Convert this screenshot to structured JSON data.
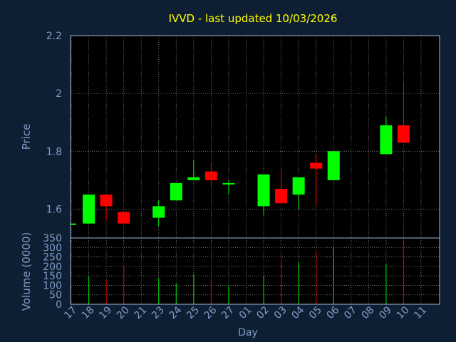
{
  "colors": {
    "background": "#0f1f33",
    "plot_background": "#000000",
    "frame": "#9fb3d4",
    "grid": "#8a8a8a",
    "title": "#ffff00",
    "axis_text": "#7f9cc7",
    "up": "#00ff00",
    "down": "#ff0000",
    "volume_up": "#00cc00",
    "volume_down": "#cc0000"
  },
  "chart_data": [
    {
      "type": "candlestick",
      "title": "IVVD - last updated 10/03/2026",
      "ylabel": "Price",
      "ylim": [
        1.5,
        2.2
      ],
      "yticks": [
        "1.6",
        "1.8",
        "2",
        "2.2"
      ],
      "grid": true,
      "x_categories": [
        "17",
        "18",
        "19",
        "20",
        "21",
        "23",
        "24",
        "25",
        "26",
        "27",
        "01",
        "02",
        "03",
        "04",
        "05",
        "06",
        "07",
        "08",
        "09",
        "10",
        "11"
      ],
      "candles": [
        {
          "x": "17",
          "open": 1.55,
          "close": 1.55,
          "high": 1.55,
          "low": 1.55
        },
        {
          "x": "18",
          "open": 1.55,
          "close": 1.65,
          "high": 1.65,
          "low": 1.55
        },
        {
          "x": "19",
          "open": 1.65,
          "close": 1.61,
          "high": 1.65,
          "low": 1.56
        },
        {
          "x": "20",
          "open": 1.59,
          "close": 1.55,
          "high": 1.59,
          "low": 1.55
        },
        {
          "x": "23",
          "open": 1.57,
          "close": 1.61,
          "high": 1.63,
          "low": 1.54
        },
        {
          "x": "24",
          "open": 1.63,
          "close": 1.69,
          "high": 1.69,
          "low": 1.63
        },
        {
          "x": "25",
          "open": 1.7,
          "close": 1.71,
          "high": 1.77,
          "low": 1.7
        },
        {
          "x": "26",
          "open": 1.73,
          "close": 1.7,
          "high": 1.76,
          "low": 1.68
        },
        {
          "x": "27",
          "open": 1.69,
          "close": 1.69,
          "high": 1.7,
          "low": 1.65
        },
        {
          "x": "02",
          "open": 1.61,
          "close": 1.72,
          "high": 1.72,
          "low": 1.58
        },
        {
          "x": "03",
          "open": 1.67,
          "close": 1.62,
          "high": 1.73,
          "low": 1.62
        },
        {
          "x": "04",
          "open": 1.65,
          "close": 1.71,
          "high": 1.71,
          "low": 1.6
        },
        {
          "x": "05",
          "open": 1.76,
          "close": 1.74,
          "high": 1.79,
          "low": 1.61
        },
        {
          "x": "06",
          "open": 1.7,
          "close": 1.8,
          "high": 1.8,
          "low": 1.7
        },
        {
          "x": "09",
          "open": 1.79,
          "close": 1.89,
          "high": 1.92,
          "low": 1.79
        },
        {
          "x": "10",
          "open": 1.89,
          "close": 1.83,
          "high": 2.04,
          "low": 1.83
        }
      ]
    },
    {
      "type": "bar",
      "ylabel": "Volume (0000)",
      "xlabel": "Day",
      "ylim": [
        0,
        350
      ],
      "yticks": [
        "0",
        "50",
        "100",
        "150",
        "200",
        "250",
        "300",
        "350"
      ],
      "grid": true,
      "categories": [
        "18",
        "19",
        "20",
        "23",
        "24",
        "25",
        "26",
        "27",
        "02",
        "03",
        "04",
        "05",
        "06",
        "09",
        "10"
      ],
      "values": [
        150,
        130,
        200,
        140,
        110,
        160,
        130,
        100,
        150,
        240,
        225,
        280,
        305,
        215,
        340
      ],
      "direction": [
        "up",
        "down",
        "down",
        "up",
        "up",
        "up",
        "down",
        "up",
        "up",
        "down",
        "up",
        "down",
        "up",
        "up",
        "down"
      ]
    }
  ]
}
